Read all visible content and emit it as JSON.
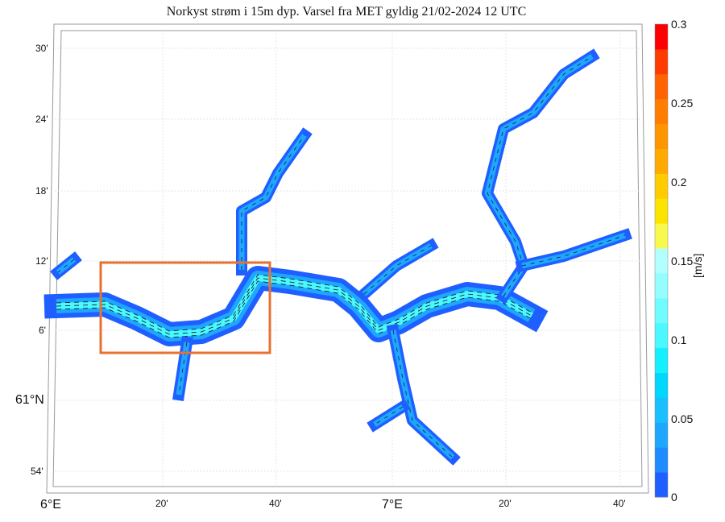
{
  "title": "Norkyst strøm i 15m dyp. Varsel fra MET gyldig 21/02-2024 12 UTC",
  "lat_labels": [
    "30'",
    "24'",
    "18'",
    "12'",
    "6'",
    "61°N",
    "54'"
  ],
  "lon_labels": [
    "6°E",
    "20'",
    "40'",
    "7°E",
    "20'",
    "40'"
  ],
  "colorbar": {
    "unit": "[m/s]",
    "min": 0,
    "max": 0.3,
    "step": 0.02,
    "tick_labels": [
      "0.3",
      "0.25",
      "0.2",
      "0.15",
      "0.1",
      "0.05",
      "0"
    ],
    "colors": [
      "#1f5fff",
      "#1e8cff",
      "#1fa6ff",
      "#19bfff",
      "#00d7ff",
      "#14f0ff",
      "#4af8ff",
      "#70fbff",
      "#94feff",
      "#b2ffff",
      "#f9f84f",
      "#fbe400",
      "#ffcc00",
      "#ffaa00",
      "#ff9600",
      "#ff7d00",
      "#ff6400",
      "#ff3c00",
      "#ff0000"
    ]
  },
  "highlight_color": "#e87131"
}
